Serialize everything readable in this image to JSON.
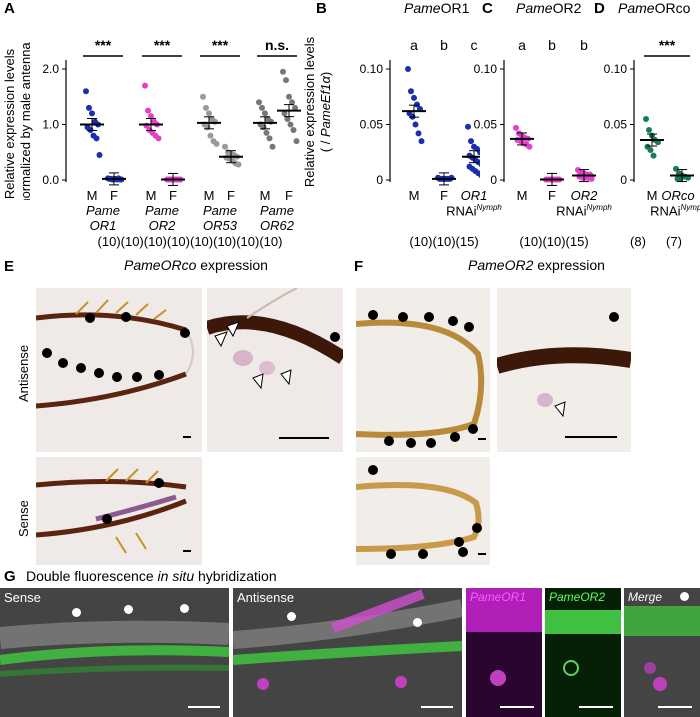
{
  "panels": {
    "A": "A",
    "B": "B",
    "C": "C",
    "D": "D",
    "E": "E",
    "F": "F",
    "G": "G"
  },
  "panel_a": {
    "ylabel_line1": "Relative expression levels",
    "ylabel_line2": "normalized by male antenna",
    "yticks": [
      "0.0",
      "1.0",
      "2.0"
    ],
    "sig": [
      "***",
      "***",
      "***",
      "n.s."
    ],
    "sex": [
      "M",
      "F",
      "M",
      "F",
      "M",
      "F",
      "M",
      "F"
    ],
    "genes": [
      {
        "l1": "Pame",
        "l2": "OR1"
      },
      {
        "l1": "Pame",
        "l2": "OR2"
      },
      {
        "l1": "Pame",
        "l2": "OR53"
      },
      {
        "l1": "Pame",
        "l2": "OR62"
      }
    ],
    "n": "(10)(10)(10)(10)(10)(10)(10)(10)"
  },
  "panel_b": {
    "title_ital": "Pame",
    "title_rest": "OR1",
    "ylabel_line1": "Relative expression levels",
    "ylabel_pre": "( / ",
    "ylabel_ital": "PameEf1α",
    "ylabel_post": ")",
    "yticks": [
      "0",
      "0.05",
      "0.10"
    ],
    "letters": [
      "a",
      "b",
      "c"
    ],
    "x1": "M",
    "x2": "F",
    "x3_ital": "OR1",
    "x3_sub": "RNAi",
    "x3_sup": "Nymph",
    "n": "(10)(10)(15)"
  },
  "panel_c": {
    "title_ital": "Pame",
    "title_rest": "OR2",
    "yticks": [
      "0",
      "0.05",
      "0.10"
    ],
    "letters": [
      "a",
      "b",
      "b"
    ],
    "x1": "M",
    "x2": "F",
    "x3_ital": "OR2",
    "x3_sub": "RNAi",
    "x3_sup": "Nymph",
    "n": "(10)(10)(15)"
  },
  "panel_d": {
    "title_ital": "Pame",
    "title_rest": "ORco",
    "yticks": [
      "0",
      "0.05",
      "0.10"
    ],
    "sig": "***",
    "x1": "M",
    "x2_ital": "ORco",
    "x2_sub": "RNAi",
    "x2_sup": "Nymph",
    "n1": "(8)",
    "n2": "(7)"
  },
  "panel_e": {
    "title_ital": "PameORco",
    "title_rest": " expression"
  },
  "panel_f": {
    "title_ital": "PameOR2",
    "title_rest": " expression"
  },
  "rows": {
    "antisense": "Antisense",
    "sense": "Sense"
  },
  "panel_g": {
    "title_pre": "Double fluorescence ",
    "title_ital": "in situ",
    "title_post": " hybridization",
    "sense": "Sense",
    "antisense": "Antisense",
    "or1": "PameOR1",
    "or2": "PameOR2",
    "merge": "Merge"
  },
  "chart_data": [
    {
      "type": "scatter",
      "panel": "A",
      "ylabel": "Relative expression levels normalized by male antenna",
      "ylim": [
        0,
        2.0
      ],
      "categories": [
        "Pame OR1 M",
        "Pame OR1 F",
        "Pame OR2 M",
        "Pame OR2 F",
        "Pame OR53 M",
        "Pame OR53 F",
        "Pame OR62 M",
        "Pame OR62 F"
      ],
      "colors": [
        "#1a2fae",
        "#1a2fae",
        "#e43fc8",
        "#e43fc8",
        "#999999",
        "#999999",
        "#777777",
        "#777777"
      ],
      "means": [
        1.0,
        0.02,
        1.0,
        0.01,
        1.03,
        0.42,
        1.03,
        1.25
      ],
      "points": [
        [
          1.6,
          1.3,
          1.2,
          1.05,
          1.0,
          0.95,
          0.9,
          0.8,
          0.75,
          0.45
        ],
        [
          0.03,
          0.02,
          0.02,
          0.01,
          0.01,
          0.02,
          0.01,
          0.02,
          0.03,
          0.01
        ],
        [
          1.7,
          1.25,
          1.15,
          1.05,
          1.0,
          0.98,
          0.9,
          0.85,
          0.8,
          0.75
        ],
        [
          0.01,
          0.01,
          0.01,
          0.01,
          0.01,
          0.01,
          0.01,
          0.01,
          0.01,
          0.01
        ],
        [
          1.5,
          1.3,
          1.2,
          1.1,
          1.05,
          1.0,
          0.95,
          0.8,
          0.7,
          0.65
        ],
        [
          0.6,
          0.5,
          0.48,
          0.45,
          0.42,
          0.4,
          0.38,
          0.35,
          0.3,
          0.28
        ],
        [
          1.4,
          1.3,
          1.2,
          1.1,
          1.05,
          1.0,
          0.95,
          0.85,
          0.75,
          0.6
        ],
        [
          1.95,
          1.8,
          1.5,
          1.4,
          1.3,
          1.2,
          1.1,
          1.0,
          0.9,
          0.7
        ]
      ]
    },
    {
      "type": "scatter",
      "panel": "B",
      "title": "PameOR1",
      "ylabel": "Relative expression levels ( / PameEf1α)",
      "ylim": [
        0,
        0.1
      ],
      "categories": [
        "M",
        "F",
        "OR1 RNAi Nymph"
      ],
      "color": "#1a2fae",
      "means": [
        0.062,
        0.001,
        0.021
      ],
      "points": [
        [
          0.1,
          0.08,
          0.074,
          0.068,
          0.064,
          0.06,
          0.057,
          0.05,
          0.042,
          0.035
        ],
        [
          0.002,
          0.001,
          0.001,
          0.001,
          0.001,
          0.001,
          0.001,
          0.001,
          0.001,
          0.002
        ],
        [
          0.048,
          0.035,
          0.03,
          0.028,
          0.025,
          0.022,
          0.02,
          0.018,
          0.016,
          0.014,
          0.012,
          0.01,
          0.008,
          0.006,
          0.004
        ]
      ]
    },
    {
      "type": "scatter",
      "panel": "C",
      "title": "PameOR2",
      "ylim": [
        0,
        0.1
      ],
      "categories": [
        "M",
        "F",
        "OR2 RNAi Nymph"
      ],
      "color": "#e43fc8",
      "means": [
        0.037,
        0.0005,
        0.004
      ],
      "points": [
        [
          0.047,
          0.042,
          0.04,
          0.038,
          0.037,
          0.036,
          0.035,
          0.033,
          0.032,
          0.03
        ],
        [
          0.0005,
          0.0005,
          0.0005,
          0.0005,
          0.0005,
          0.0005,
          0.0005,
          0.0005,
          0.0005,
          0.0005
        ],
        [
          0.009,
          0.007,
          0.006,
          0.005,
          0.005,
          0.004,
          0.004,
          0.004,
          0.003,
          0.003,
          0.003,
          0.002,
          0.002,
          0.002,
          0.001
        ]
      ]
    },
    {
      "type": "scatter",
      "panel": "D",
      "title": "PameORco",
      "ylim": [
        0,
        0.1
      ],
      "categories": [
        "M",
        "ORco RNAi Nymph"
      ],
      "color": "#1a7a55",
      "means": [
        0.036,
        0.004
      ],
      "points": [
        [
          0.055,
          0.045,
          0.04,
          0.036,
          0.034,
          0.03,
          0.027,
          0.022
        ],
        [
          0.01,
          0.006,
          0.004,
          0.003,
          0.002,
          0.001,
          0.001
        ]
      ]
    }
  ]
}
